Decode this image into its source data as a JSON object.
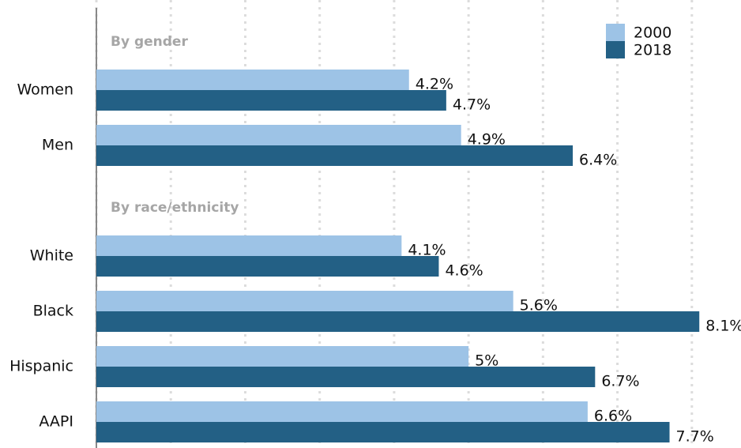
{
  "chart_data": {
    "type": "bar",
    "orientation": "horizontal",
    "categories": [
      "By gender",
      "Women",
      "Men",
      "By race/ethnicity",
      "White",
      "Black",
      "Hispanic",
      "AAPI"
    ],
    "series": [
      {
        "name": "2000",
        "color": "#9dc3e6",
        "values": [
          null,
          4.2,
          4.9,
          null,
          4.1,
          5.6,
          5,
          6.6
        ],
        "value_labels": [
          null,
          "4.2%",
          "4.9%",
          null,
          "4.1%",
          "5.6%",
          "5%",
          "6.6%"
        ]
      },
      {
        "name": "2018",
        "color": "#236085",
        "values": [
          null,
          4.7,
          6.4,
          null,
          4.6,
          8.1,
          6.7,
          7.7
        ],
        "value_labels": [
          null,
          "4.7%",
          "6.4%",
          null,
          "4.6%",
          "8.1%",
          "6.7%",
          "7.7%"
        ]
      }
    ],
    "xlim": [
      0,
      8.66
    ],
    "xticks": [
      0,
      1,
      2,
      3,
      4,
      5,
      6,
      7,
      8
    ],
    "grid": true,
    "legend": "top-right"
  }
}
